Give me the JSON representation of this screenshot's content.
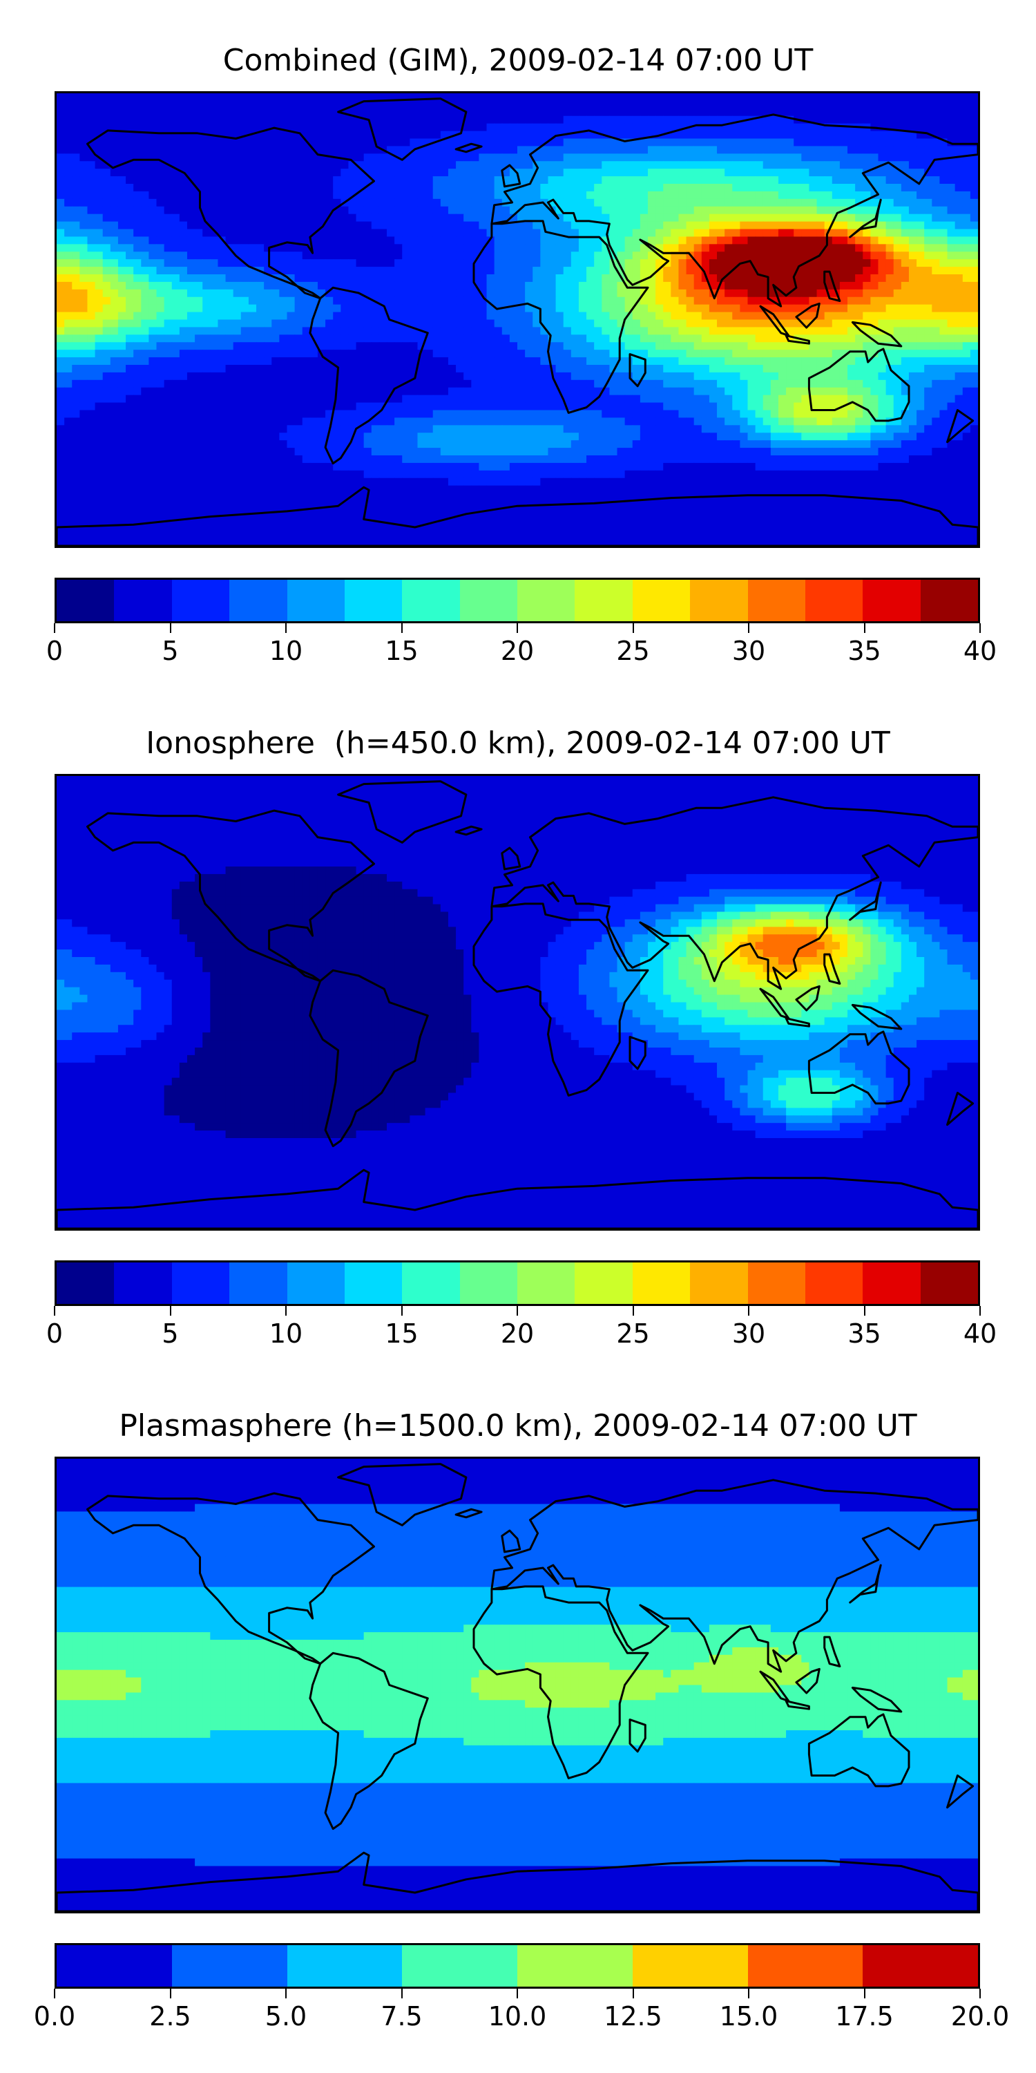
{
  "chart_data": [
    {
      "type": "heatmap",
      "title": "Combined (GIM), 2009-02-14 07:00 UT",
      "colorbar": {
        "levels": [
          0,
          2.5,
          5,
          7.5,
          10,
          12.5,
          15,
          17.5,
          20,
          22.5,
          25,
          27.5,
          30,
          32.5,
          35,
          37.5,
          40
        ],
        "colors": [
          "#00008d",
          "#0000d8",
          "#0020ff",
          "#0062ff",
          "#009cff",
          "#00daff",
          "#2effcc",
          "#67ff8f",
          "#9eff59",
          "#ccff2a",
          "#ffe800",
          "#ffb000",
          "#ff7000",
          "#ff3900",
          "#e30000",
          "#980000"
        ],
        "tick_values": [
          0,
          5,
          10,
          15,
          20,
          25,
          30,
          35,
          40
        ],
        "tick_labels": [
          "0",
          "5",
          "10",
          "15",
          "20",
          "25",
          "30",
          "35",
          "40"
        ]
      },
      "background_value": 4,
      "features": [
        {
          "lon": 100,
          "lat": 8,
          "sx": 55,
          "sy": 20,
          "value": 28
        },
        {
          "lon": 108,
          "lat": 24,
          "sx": 30,
          "sy": 9,
          "value": 24
        },
        {
          "lon": 120,
          "lat": -35,
          "sx": 22,
          "sy": 9,
          "value": 18
        },
        {
          "lon": -175,
          "lat": 8,
          "sx": 22,
          "sy": 14,
          "value": 14
        },
        {
          "lon": -120,
          "lat": 5,
          "sx": 35,
          "sy": 10,
          "value": 9
        },
        {
          "lon": -10,
          "lat": -45,
          "sx": 40,
          "sy": 8,
          "value": 8
        },
        {
          "lon": 60,
          "lat": 50,
          "sx": 60,
          "sy": 12,
          "value": 11
        }
      ]
    },
    {
      "type": "heatmap",
      "title": "Ionosphere  (h=450.0 km), 2009-02-14 07:00 UT",
      "colorbar": {
        "levels": [
          0,
          2.5,
          5,
          7.5,
          10,
          12.5,
          15,
          17.5,
          20,
          22.5,
          25,
          27.5,
          30,
          32.5,
          35,
          37.5,
          40
        ],
        "colors": [
          "#00008d",
          "#0000d8",
          "#0020ff",
          "#0062ff",
          "#009cff",
          "#00daff",
          "#2effcc",
          "#67ff8f",
          "#9eff59",
          "#ccff2a",
          "#ffe800",
          "#ffb000",
          "#ff7000",
          "#ff3900",
          "#e30000",
          "#980000"
        ],
        "tick_values": [
          0,
          5,
          10,
          15,
          20,
          25,
          30,
          35,
          40
        ],
        "tick_labels": [
          "0",
          "5",
          "10",
          "15",
          "20",
          "25",
          "30",
          "35",
          "40"
        ]
      },
      "background_value": 3.5,
      "features": [
        {
          "lon": 100,
          "lat": 8,
          "sx": 45,
          "sy": 18,
          "value": 18
        },
        {
          "lon": 108,
          "lat": 24,
          "sx": 25,
          "sy": 9,
          "value": 16
        },
        {
          "lon": 115,
          "lat": -35,
          "sx": 20,
          "sy": 8,
          "value": 13
        },
        {
          "lon": -90,
          "lat": 0,
          "sx": 60,
          "sy": 35,
          "value": -3
        },
        {
          "lon": -160,
          "lat": 0,
          "sx": 25,
          "sy": 15,
          "value": 6
        }
      ]
    },
    {
      "type": "heatmap",
      "title": "Plasmasphere (h=1500.0 km), 2009-02-14 07:00 UT",
      "colorbar": {
        "levels": [
          0,
          2.5,
          5,
          7.5,
          10,
          12.5,
          15,
          17.5,
          20
        ],
        "colors": [
          "#0000d8",
          "#0062ff",
          "#00c4ff",
          "#45ffb2",
          "#a8ff4f",
          "#ffd000",
          "#ff5a00",
          "#c80000"
        ],
        "tick_values": [
          0,
          2.5,
          5,
          7.5,
          10,
          12.5,
          15,
          17.5,
          20
        ],
        "tick_labels": [
          "0.0",
          "2.5",
          "5.0",
          "7.5",
          "10.0",
          "12.5",
          "15.0",
          "17.5",
          "20.0"
        ]
      },
      "background_value": 2,
      "features": [
        {
          "lon": 0,
          "lat": 0,
          "sx": 600,
          "sy": 30,
          "value": 6
        },
        {
          "lon": 20,
          "lat": 0,
          "sx": 60,
          "sy": 16,
          "value": 2.5
        },
        {
          "lon": -170,
          "lat": 0,
          "sx": 40,
          "sy": 15,
          "value": 2.5
        },
        {
          "lon": 95,
          "lat": 8,
          "sx": 15,
          "sy": 7,
          "value": 2.5
        }
      ]
    }
  ],
  "continents": [
    [
      [
        -168,
        66
      ],
      [
        -160,
        71
      ],
      [
        -140,
        70
      ],
      [
        -125,
        70
      ],
      [
        -110,
        68
      ],
      [
        -95,
        72
      ],
      [
        -85,
        70
      ],
      [
        -78,
        62
      ],
      [
        -65,
        60
      ],
      [
        -56,
        52
      ],
      [
        -66,
        45
      ],
      [
        -72,
        41
      ],
      [
        -76,
        35
      ],
      [
        -81,
        31
      ],
      [
        -80,
        25
      ],
      [
        -82,
        28
      ],
      [
        -90,
        29
      ],
      [
        -97,
        27
      ],
      [
        -97,
        20
      ],
      [
        -90,
        16
      ],
      [
        -83,
        10
      ],
      [
        -77,
        8
      ],
      [
        -80,
        10
      ],
      [
        -87,
        13
      ],
      [
        -95,
        16
      ],
      [
        -105,
        20
      ],
      [
        -110,
        24
      ],
      [
        -117,
        32
      ],
      [
        -122,
        37
      ],
      [
        -124,
        42
      ],
      [
        -124,
        48
      ],
      [
        -130,
        55
      ],
      [
        -140,
        60
      ],
      [
        -150,
        60
      ],
      [
        -158,
        57
      ],
      [
        -165,
        62
      ],
      [
        -168,
        66
      ]
    ],
    [
      [
        -77,
        8
      ],
      [
        -72,
        12
      ],
      [
        -62,
        10
      ],
      [
        -52,
        5
      ],
      [
        -50,
        0
      ],
      [
        -35,
        -5
      ],
      [
        -38,
        -13
      ],
      [
        -40,
        -22
      ],
      [
        -48,
        -26
      ],
      [
        -53,
        -34
      ],
      [
        -58,
        -38
      ],
      [
        -63,
        -41
      ],
      [
        -65,
        -46
      ],
      [
        -69,
        -52
      ],
      [
        -72,
        -54
      ],
      [
        -75,
        -48
      ],
      [
        -73,
        -40
      ],
      [
        -71,
        -30
      ],
      [
        -70,
        -18
      ],
      [
        -76,
        -14
      ],
      [
        -81,
        -5
      ],
      [
        -80,
        0
      ],
      [
        -77,
        8
      ]
    ],
    [
      [
        -45,
        60
      ],
      [
        -55,
        65
      ],
      [
        -58,
        75
      ],
      [
        -70,
        78
      ],
      [
        -60,
        82
      ],
      [
        -30,
        83
      ],
      [
        -20,
        78
      ],
      [
        -22,
        70
      ],
      [
        -40,
        64
      ],
      [
        -45,
        60
      ]
    ],
    [
      [
        -10,
        36
      ],
      [
        -9,
        43
      ],
      [
        -2,
        44
      ],
      [
        -5,
        48
      ],
      [
        5,
        51
      ],
      [
        8,
        57
      ],
      [
        5,
        62
      ],
      [
        15,
        69
      ],
      [
        28,
        71
      ],
      [
        42,
        67
      ],
      [
        55,
        69
      ],
      [
        70,
        73
      ],
      [
        80,
        73
      ],
      [
        100,
        77
      ],
      [
        120,
        73
      ],
      [
        140,
        72
      ],
      [
        160,
        70
      ],
      [
        170,
        66
      ],
      [
        180,
        66
      ],
      [
        180,
        62
      ],
      [
        163,
        60
      ],
      [
        157,
        51
      ],
      [
        145,
        59
      ],
      [
        135,
        55
      ],
      [
        141,
        47
      ],
      [
        130,
        42
      ],
      [
        125,
        40
      ],
      [
        121,
        32
      ],
      [
        121,
        28
      ],
      [
        118,
        24
      ],
      [
        110,
        20
      ],
      [
        108,
        16
      ],
      [
        109,
        12
      ],
      [
        105,
        9
      ],
      [
        100,
        13
      ],
      [
        103,
        5
      ],
      [
        98,
        8
      ],
      [
        98,
        16
      ],
      [
        94,
        17
      ],
      [
        91,
        22
      ],
      [
        87,
        21
      ],
      [
        80,
        15
      ],
      [
        77,
        8
      ],
      [
        73,
        18
      ],
      [
        67,
        25
      ],
      [
        57,
        25
      ],
      [
        52,
        28
      ],
      [
        48,
        30
      ],
      [
        57,
        23
      ],
      [
        59,
        22
      ],
      [
        52,
        16
      ],
      [
        45,
        13
      ],
      [
        43,
        15
      ],
      [
        36,
        28
      ],
      [
        35,
        32
      ],
      [
        36,
        36
      ],
      [
        28,
        37
      ],
      [
        23,
        37
      ],
      [
        22,
        40
      ],
      [
        18,
        40
      ],
      [
        14,
        45
      ],
      [
        12,
        44
      ],
      [
        16,
        38
      ],
      [
        10,
        44
      ],
      [
        3,
        43
      ],
      [
        -4,
        37
      ],
      [
        -10,
        36
      ]
    ],
    [
      [
        -10,
        36
      ],
      [
        -6,
        36
      ],
      [
        3,
        37
      ],
      [
        10,
        37
      ],
      [
        11,
        33
      ],
      [
        20,
        31
      ],
      [
        29,
        31
      ],
      [
        32,
        31
      ],
      [
        35,
        28
      ],
      [
        38,
        20
      ],
      [
        43,
        12
      ],
      [
        51,
        12
      ],
      [
        42,
        0
      ],
      [
        40,
        -7
      ],
      [
        40,
        -15
      ],
      [
        35,
        -24
      ],
      [
        32,
        -29
      ],
      [
        27,
        -33
      ],
      [
        20,
        -35
      ],
      [
        18,
        -30
      ],
      [
        14,
        -22
      ],
      [
        12,
        -12
      ],
      [
        13,
        -6
      ],
      [
        9,
        -1
      ],
      [
        9,
        4
      ],
      [
        4,
        6
      ],
      [
        -2,
        5
      ],
      [
        -8,
        4
      ],
      [
        -13,
        8
      ],
      [
        -17,
        14
      ],
      [
        -17,
        21
      ],
      [
        -13,
        27
      ],
      [
        -10,
        31
      ],
      [
        -10,
        36
      ]
    ],
    [
      [
        114,
        -22
      ],
      [
        122,
        -18
      ],
      [
        130,
        -12
      ],
      [
        136,
        -12
      ],
      [
        137,
        -16
      ],
      [
        141,
        -12
      ],
      [
        143,
        -11
      ],
      [
        146,
        -19
      ],
      [
        153,
        -25
      ],
      [
        153,
        -31
      ],
      [
        150,
        -37
      ],
      [
        145,
        -38
      ],
      [
        140,
        -38
      ],
      [
        137,
        -34
      ],
      [
        131,
        -31
      ],
      [
        124,
        -34
      ],
      [
        115,
        -34
      ],
      [
        114,
        -26
      ],
      [
        114,
        -22
      ]
    ],
    [
      [
        -180,
        -85
      ],
      [
        -180,
        -78
      ],
      [
        -150,
        -77
      ],
      [
        -120,
        -74
      ],
      [
        -90,
        -72
      ],
      [
        -70,
        -70
      ],
      [
        -60,
        -63
      ],
      [
        -58,
        -64
      ],
      [
        -60,
        -75
      ],
      [
        -40,
        -78
      ],
      [
        -20,
        -73
      ],
      [
        0,
        -70
      ],
      [
        30,
        -69
      ],
      [
        60,
        -67
      ],
      [
        90,
        -66
      ],
      [
        120,
        -66
      ],
      [
        150,
        -68
      ],
      [
        165,
        -72
      ],
      [
        170,
        -77
      ],
      [
        180,
        -78
      ],
      [
        180,
        -85
      ],
      [
        -180,
        -85
      ]
    ]
  ],
  "islands": [
    [
      [
        -5,
        50
      ],
      [
        1,
        51
      ],
      [
        0,
        55
      ],
      [
        -3,
        58
      ],
      [
        -6,
        56
      ],
      [
        -5,
        50
      ]
    ],
    [
      [
        130,
        31
      ],
      [
        134,
        34
      ],
      [
        140,
        35
      ],
      [
        141,
        41
      ],
      [
        142,
        45
      ],
      [
        140,
        38
      ],
      [
        135,
        35
      ],
      [
        130,
        31
      ]
    ],
    [
      [
        95,
        5
      ],
      [
        100,
        2
      ],
      [
        106,
        -6
      ],
      [
        103,
        -5
      ],
      [
        95,
        5
      ]
    ],
    [
      [
        109,
        1
      ],
      [
        113,
        -3
      ],
      [
        117,
        1
      ],
      [
        118,
        6
      ],
      [
        115,
        5
      ],
      [
        109,
        1
      ]
    ],
    [
      [
        105,
        -6
      ],
      [
        114,
        -8
      ],
      [
        114,
        -9
      ],
      [
        106,
        -8
      ],
      [
        105,
        -6
      ]
    ],
    [
      [
        131,
        -1
      ],
      [
        138,
        -2
      ],
      [
        146,
        -6
      ],
      [
        150,
        -10
      ],
      [
        141,
        -9
      ],
      [
        134,
        -4
      ],
      [
        131,
        -1
      ]
    ],
    [
      [
        120,
        18
      ],
      [
        122,
        18
      ],
      [
        124,
        12
      ],
      [
        126,
        7
      ],
      [
        122,
        8
      ],
      [
        120,
        14
      ],
      [
        120,
        18
      ]
    ],
    [
      [
        44,
        -13
      ],
      [
        50,
        -15
      ],
      [
        50,
        -20
      ],
      [
        47,
        -25
      ],
      [
        44,
        -22
      ],
      [
        44,
        -13
      ]
    ],
    [
      [
        172,
        -34
      ],
      [
        178,
        -38
      ],
      [
        174,
        -41
      ],
      [
        168,
        -46
      ],
      [
        172,
        -34
      ]
    ],
    [
      [
        -24,
        64
      ],
      [
        -18,
        66
      ],
      [
        -14,
        65
      ],
      [
        -20,
        63
      ],
      [
        -24,
        64
      ]
    ]
  ],
  "extent": {
    "lon": [
      -180,
      180
    ],
    "lat": [
      -85,
      85
    ]
  }
}
